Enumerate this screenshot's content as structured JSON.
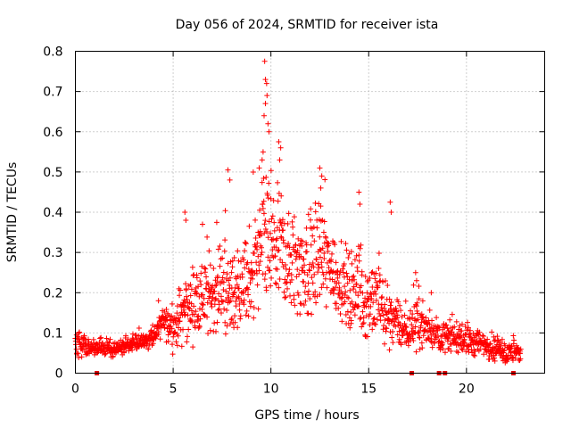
{
  "chart_data": {
    "type": "scatter",
    "title": "Day 056 of 2024, SRMTID for receiver ista",
    "xlabel": "GPS time / hours",
    "ylabel": "SRMTID / TECUs",
    "xlim": [
      0,
      24
    ],
    "ylim": [
      0,
      0.8
    ],
    "xticks": [
      0,
      5,
      10,
      15,
      20
    ],
    "xtick_labels": [
      "0",
      "5",
      "10",
      "15",
      "20"
    ],
    "yticks": [
      0,
      0.1,
      0.2,
      0.3,
      0.4,
      0.5,
      0.6,
      0.7,
      0.8
    ],
    "ytick_labels": [
      "0",
      "0.1",
      "0.2",
      "0.3",
      "0.4",
      "0.5",
      "0.6",
      "0.7",
      "0.8"
    ],
    "grid": true,
    "marker": "+",
    "color": "#ff0000",
    "envelope": {
      "x": [
        0.0,
        0.5,
        1.0,
        2.0,
        3.0,
        4.0,
        4.5,
        5.0,
        5.5,
        6.0,
        7.0,
        8.0,
        9.0,
        9.5,
        10.0,
        10.5,
        11.0,
        12.0,
        12.5,
        13.0,
        14.0,
        15.0,
        16.0,
        16.5,
        17.0,
        17.5,
        18.0,
        19.0,
        20.0,
        21.0,
        22.0,
        22.8
      ],
      "center": [
        0.07,
        0.07,
        0.06,
        0.06,
        0.07,
        0.09,
        0.13,
        0.11,
        0.15,
        0.17,
        0.2,
        0.2,
        0.23,
        0.3,
        0.32,
        0.3,
        0.27,
        0.26,
        0.3,
        0.26,
        0.2,
        0.18,
        0.15,
        0.12,
        0.1,
        0.13,
        0.11,
        0.09,
        0.08,
        0.07,
        0.05,
        0.05
      ],
      "spread": [
        0.03,
        0.03,
        0.02,
        0.02,
        0.02,
        0.03,
        0.04,
        0.05,
        0.08,
        0.09,
        0.1,
        0.11,
        0.12,
        0.18,
        0.16,
        0.15,
        0.13,
        0.14,
        0.15,
        0.12,
        0.11,
        0.1,
        0.09,
        0.06,
        0.05,
        0.07,
        0.05,
        0.04,
        0.04,
        0.04,
        0.03,
        0.03
      ]
    },
    "peaks": [
      {
        "x": 9.68,
        "y": 0.775
      },
      {
        "x": 9.72,
        "y": 0.73
      },
      {
        "x": 9.78,
        "y": 0.72
      },
      {
        "x": 9.8,
        "y": 0.69
      },
      {
        "x": 9.72,
        "y": 0.67
      },
      {
        "x": 9.65,
        "y": 0.64
      },
      {
        "x": 9.85,
        "y": 0.62
      },
      {
        "x": 9.9,
        "y": 0.6
      },
      {
        "x": 10.4,
        "y": 0.575
      },
      {
        "x": 10.5,
        "y": 0.56
      },
      {
        "x": 10.45,
        "y": 0.53
      },
      {
        "x": 9.6,
        "y": 0.55
      },
      {
        "x": 9.55,
        "y": 0.53
      },
      {
        "x": 9.4,
        "y": 0.51
      },
      {
        "x": 12.5,
        "y": 0.51
      },
      {
        "x": 12.6,
        "y": 0.49
      },
      {
        "x": 12.55,
        "y": 0.46
      },
      {
        "x": 7.8,
        "y": 0.505
      },
      {
        "x": 7.9,
        "y": 0.48
      },
      {
        "x": 14.5,
        "y": 0.45
      },
      {
        "x": 14.55,
        "y": 0.42
      },
      {
        "x": 16.1,
        "y": 0.425
      },
      {
        "x": 16.15,
        "y": 0.4
      },
      {
        "x": 5.6,
        "y": 0.4
      },
      {
        "x": 5.65,
        "y": 0.38
      },
      {
        "x": 6.5,
        "y": 0.37
      },
      {
        "x": 4.25,
        "y": 0.18
      },
      {
        "x": 17.4,
        "y": 0.25
      },
      {
        "x": 17.45,
        "y": 0.23
      },
      {
        "x": 18.2,
        "y": 0.2
      }
    ],
    "zero_markers_x": [
      1.1,
      17.2,
      18.6,
      18.9,
      22.4
    ]
  }
}
